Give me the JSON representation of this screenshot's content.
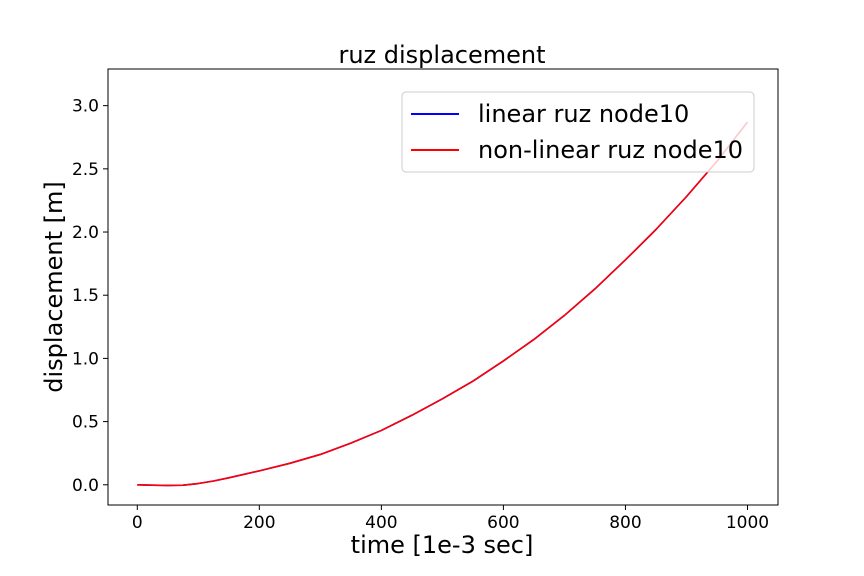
{
  "chart_data": {
    "type": "line",
    "title": "ruz displacement",
    "xlabel": "time [1e-3 sec]",
    "ylabel": "displacement [m]",
    "xlim": [
      -48,
      1050
    ],
    "ylim": [
      -0.16,
      3.29
    ],
    "xticks": [
      {
        "value": 0,
        "label": "0"
      },
      {
        "value": 200,
        "label": "200"
      },
      {
        "value": 400,
        "label": "400"
      },
      {
        "value": 600,
        "label": "600"
      },
      {
        "value": 800,
        "label": "800"
      },
      {
        "value": 1000,
        "label": "1000"
      }
    ],
    "yticks": [
      {
        "value": 0.0,
        "label": "0.0"
      },
      {
        "value": 0.5,
        "label": "0.5"
      },
      {
        "value": 1.0,
        "label": "1.0"
      },
      {
        "value": 1.5,
        "label": "1.5"
      },
      {
        "value": 2.0,
        "label": "2.0"
      },
      {
        "value": 2.5,
        "label": "2.5"
      },
      {
        "value": 3.0,
        "label": "3.0"
      }
    ],
    "grid": false,
    "legend_position": "upper right",
    "x": [
      0,
      25,
      50,
      75,
      100,
      125,
      150,
      200,
      250,
      300,
      350,
      400,
      450,
      500,
      550,
      600,
      650,
      700,
      750,
      800,
      850,
      900,
      950,
      1000
    ],
    "series": [
      {
        "name": "linear ruz node10",
        "color": "#0000ff",
        "values": [
          0.0,
          -0.003,
          -0.005,
          -0.003,
          0.01,
          0.03,
          0.055,
          0.11,
          0.17,
          0.24,
          0.33,
          0.43,
          0.55,
          0.68,
          0.82,
          0.98,
          1.15,
          1.34,
          1.55,
          1.78,
          2.02,
          2.28,
          2.56,
          2.87
        ]
      },
      {
        "name": "non-linear ruz node10",
        "color": "#ff0000",
        "values": [
          0.0,
          -0.003,
          -0.005,
          -0.003,
          0.01,
          0.03,
          0.055,
          0.11,
          0.17,
          0.24,
          0.33,
          0.43,
          0.55,
          0.68,
          0.82,
          0.98,
          1.15,
          1.34,
          1.55,
          1.78,
          2.02,
          2.28,
          2.56,
          2.87
        ]
      }
    ]
  }
}
